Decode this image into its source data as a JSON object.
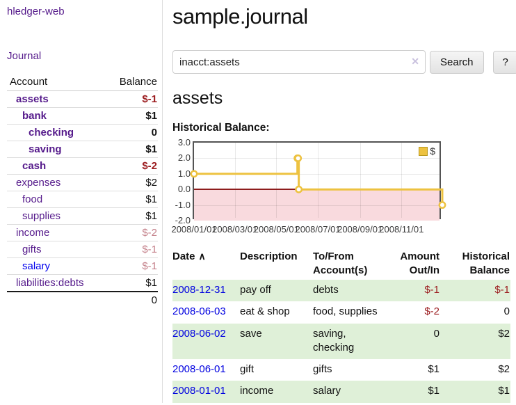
{
  "colors": {
    "link_purple": "#551a8b",
    "link_blue": "#0000ee",
    "negative_red": "#9b1b1e",
    "muted_negative_red": "#c4808a",
    "register_row_green": "#dff0d8",
    "series_gold": "#edc240",
    "negative_zone_pink": "#f9dade",
    "zero_line_red": "#8e1d1d"
  },
  "app": {
    "brand": "hledger-web",
    "nav_journal": "Journal"
  },
  "sidebar": {
    "header": {
      "account": "Account",
      "balance": "Balance"
    },
    "rows": [
      {
        "account": "assets",
        "balance": "$-1",
        "depth": 1,
        "bold": true,
        "balance_class": "neg"
      },
      {
        "account": "bank",
        "balance": "$1",
        "depth": 2,
        "bold": true,
        "balance_class": "pos"
      },
      {
        "account": "checking",
        "balance": "0",
        "depth": 3,
        "bold": true,
        "balance_class": "pos"
      },
      {
        "account": "saving",
        "balance": "$1",
        "depth": 3,
        "bold": true,
        "balance_class": "pos"
      },
      {
        "account": "cash",
        "balance": "$-2",
        "depth": 2,
        "bold": true,
        "balance_class": "neg"
      },
      {
        "account": "expenses",
        "balance": "$2",
        "depth": 1,
        "bold": false,
        "balance_class": "pos"
      },
      {
        "account": "food",
        "balance": "$1",
        "depth": 2,
        "bold": false,
        "balance_class": "pos"
      },
      {
        "account": "supplies",
        "balance": "$1",
        "depth": 2,
        "bold": false,
        "balance_class": "pos"
      },
      {
        "account": "income",
        "balance": "$-2",
        "depth": 1,
        "bold": false,
        "balance_class": "mneg"
      },
      {
        "account": "gifts",
        "balance": "$-1",
        "depth": 2,
        "bold": false,
        "balance_class": "mneg"
      },
      {
        "account": "salary",
        "balance": "$-1",
        "depth": 2,
        "bold": false,
        "balance_class": "mneg",
        "link_color": "blue"
      },
      {
        "account": "liabilities:debts",
        "balance": "$1",
        "depth": 1,
        "bold": false,
        "balance_class": "pos"
      }
    ],
    "total": "0"
  },
  "header": {
    "title": "sample.journal"
  },
  "search": {
    "value": "inacct:assets",
    "clear_icon": "✕",
    "search_label": "Search",
    "help_label": "?"
  },
  "main": {
    "account_title": "assets",
    "chart_label": "Historical Balance:"
  },
  "chart_data": {
    "type": "line",
    "step": true,
    "title": "Historical Balance:",
    "x_domain": [
      "2008-01-01",
      "2008-12-31"
    ],
    "ylim": [
      -2,
      3
    ],
    "yticks": [
      3.0,
      2.0,
      1.0,
      0.0,
      -1.0,
      -2.0
    ],
    "ytick_labels": [
      "3.0",
      "2.0",
      "1.0",
      "0.0",
      "-1.0",
      "-2.0"
    ],
    "xticks": [
      "2008-01-01",
      "2008-03-01",
      "2008-05-01",
      "2008-07-01",
      "2008-09-01",
      "2008-11-01"
    ],
    "xtick_labels": [
      "2008/01/01",
      "2008/03/01",
      "2008/05/01",
      "2008/07/01",
      "2008/09/01",
      "2008/11/01"
    ],
    "grid": true,
    "legend_position": "top-right",
    "series": [
      {
        "name": "$",
        "color": "#edc240",
        "points": [
          {
            "x": "2008-01-01",
            "y": 1
          },
          {
            "x": "2008-06-01",
            "y": 2
          },
          {
            "x": "2008-06-02",
            "y": 2
          },
          {
            "x": "2008-06-03",
            "y": 0
          },
          {
            "x": "2008-12-31",
            "y": -1
          }
        ]
      }
    ],
    "negative_region": {
      "from": 0,
      "to": -2,
      "color": "#f9dade"
    },
    "zero_line_color": "#8e1d1d"
  },
  "register": {
    "sort_icon": "∧",
    "headers": [
      {
        "label": "Date",
        "sorted": true
      },
      {
        "label": "Description"
      },
      {
        "label": "To/From Account(s)"
      },
      {
        "label": "Amount Out/In"
      },
      {
        "label": "Historical Balance"
      }
    ],
    "rows": [
      {
        "date": "2008-12-31",
        "description": "pay off",
        "accounts": "debts",
        "amount": "$-1",
        "amount_negative": true,
        "balance": "$-1",
        "balance_negative": true
      },
      {
        "date": "2008-06-03",
        "description": "eat & shop",
        "accounts": "food, supplies",
        "amount": "$-2",
        "amount_negative": true,
        "balance": "0",
        "balance_negative": false
      },
      {
        "date": "2008-06-02",
        "description": "save",
        "accounts": "saving, checking",
        "amount": "0",
        "amount_negative": false,
        "balance": "$2",
        "balance_negative": false
      },
      {
        "date": "2008-06-01",
        "description": "gift",
        "accounts": "gifts",
        "amount": "$1",
        "amount_negative": false,
        "balance": "$2",
        "balance_negative": false
      },
      {
        "date": "2008-01-01",
        "description": "income",
        "accounts": "salary",
        "amount": "$1",
        "amount_negative": false,
        "balance": "$1",
        "balance_negative": false
      }
    ]
  }
}
